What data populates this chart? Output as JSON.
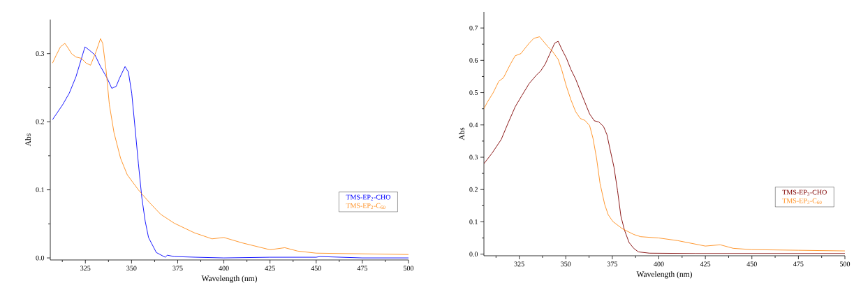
{
  "chart_data": [
    {
      "type": "line",
      "xlabel": "Wavelength (nm)",
      "ylabel": "Abs",
      "xlim": [
        306,
        500
      ],
      "ylim": [
        -0.003,
        0.35
      ],
      "xticks": [
        {
          "value": 312.5,
          "label": null
        },
        325,
        {
          "value": 337.5,
          "label": null
        },
        350,
        {
          "value": 362.5,
          "label": null
        },
        375,
        {
          "value": 387.5,
          "label": null
        },
        400,
        {
          "value": 412.5,
          "label": null
        },
        425,
        {
          "value": 437.5,
          "label": null
        },
        450,
        {
          "value": 462.5,
          "label": null
        },
        475,
        {
          "value": 487.5,
          "label": null
        },
        500
      ],
      "yticks": [
        {
          "value": 0,
          "label": "0.0"
        },
        {
          "value": 0.05,
          "label": null
        },
        0.1,
        {
          "value": 0.15,
          "label": null
        },
        0.2,
        {
          "value": 0.25,
          "label": null
        },
        0.3
      ],
      "legend": "right",
      "grid": false,
      "series": [
        {
          "name": "TMS-EP$_{2}$-CHO",
          "color": "#0000ff",
          "x": [
            307.2,
            309.7,
            312.7,
            316.3,
            319.9,
            322.9,
            324.8,
            327.2,
            330.2,
            333.2,
            336.8,
            339.3,
            341.7,
            343.5,
            346.5,
            348.3,
            350.1,
            351.9,
            353.7,
            355.6,
            357.4,
            359.2,
            363.4,
            368.2,
            369.4,
            373.1,
            385,
            400,
            425,
            450,
            452,
            475,
            500
          ],
          "values": [
            0.203,
            0.213,
            0.225,
            0.242,
            0.266,
            0.293,
            0.31,
            0.305,
            0.298,
            0.281,
            0.264,
            0.249,
            0.252,
            0.264,
            0.281,
            0.273,
            0.242,
            0.191,
            0.139,
            0.088,
            0.054,
            0.03,
            0.008,
            0.001,
            0.004,
            0.002,
            0.001,
            0.0,
            0.001,
            0.001,
            0.002,
            0.0,
            0.0
          ]
        },
        {
          "name": "TMS-EP$_{2}$-C$_{60}$",
          "color": "#ff8c1a",
          "x": [
            307.2,
            309.1,
            311.5,
            313.9,
            315.7,
            317.5,
            319.9,
            322.9,
            325.4,
            327.8,
            330.8,
            333.2,
            334.4,
            336.2,
            338.0,
            340.5,
            344.1,
            347.7,
            353.7,
            359.8,
            365.8,
            373.1,
            383.9,
            393.6,
            400,
            410,
            425,
            433,
            440,
            450,
            475,
            500
          ],
          "values": [
            0.286,
            0.297,
            0.31,
            0.315,
            0.308,
            0.3,
            0.295,
            0.293,
            0.286,
            0.283,
            0.303,
            0.322,
            0.315,
            0.276,
            0.225,
            0.184,
            0.146,
            0.122,
            0.1,
            0.081,
            0.064,
            0.051,
            0.037,
            0.028,
            0.03,
            0.022,
            0.012,
            0.015,
            0.01,
            0.007,
            0.006,
            0.005
          ]
        }
      ]
    },
    {
      "type": "line",
      "xlabel": "Wavelength (nm)",
      "ylabel": "Abs",
      "xlim": [
        306,
        500
      ],
      "ylim": [
        -0.005,
        0.75
      ],
      "xticks": [
        {
          "value": 312.5,
          "label": null
        },
        325,
        {
          "value": 337.5,
          "label": null
        },
        350,
        {
          "value": 362.5,
          "label": null
        },
        375,
        {
          "value": 387.5,
          "label": null
        },
        400,
        {
          "value": 412.5,
          "label": null
        },
        425,
        {
          "value": 437.5,
          "label": null
        },
        450,
        {
          "value": 462.5,
          "label": null
        },
        475,
        {
          "value": 487.5,
          "label": null
        },
        500
      ],
      "yticks": [
        {
          "value": 0,
          "label": "0.0"
        },
        {
          "value": 0.05,
          "label": null
        },
        0.1,
        {
          "value": 0.15,
          "label": null
        },
        0.2,
        {
          "value": 0.25,
          "label": null
        },
        0.3,
        {
          "value": 0.35,
          "label": null
        },
        0.4,
        {
          "value": 0.45,
          "label": null
        },
        0.5,
        {
          "value": 0.55,
          "label": null
        },
        0.6,
        {
          "value": 0.65,
          "label": null
        },
        0.7
      ],
      "legend": "right",
      "grid": false,
      "series": [
        {
          "name": "TMS-EP$_{3}$-CHO",
          "color": "#7f0000",
          "x": [
            306.0,
            310.3,
            315.3,
            319.0,
            322.8,
            326.5,
            330.3,
            334.0,
            336.5,
            339.0,
            341.5,
            344.0,
            345.9,
            347.8,
            350.3,
            352.8,
            355.3,
            359.0,
            362.8,
            365.3,
            367.8,
            370.3,
            372.1,
            374.0,
            375.9,
            377.8,
            379.6,
            381.5,
            384.0,
            386.5,
            389.0,
            395,
            420,
            450,
            475,
            500
          ],
          "values": [
            0.28,
            0.312,
            0.355,
            0.406,
            0.456,
            0.492,
            0.528,
            0.553,
            0.567,
            0.589,
            0.621,
            0.653,
            0.659,
            0.635,
            0.607,
            0.571,
            0.542,
            0.488,
            0.434,
            0.413,
            0.409,
            0.395,
            0.37,
            0.319,
            0.269,
            0.197,
            0.118,
            0.075,
            0.036,
            0.018,
            0.007,
            0.003,
            0.002,
            0.002,
            0.002,
            0.002
          ]
        },
        {
          "name": "TMS-EP$_{3}$-C$_{60}$",
          "color": "#ff8c1a",
          "x": [
            306.0,
            307.8,
            310.9,
            314.0,
            316.5,
            320.3,
            322.8,
            325.9,
            327.8,
            330.3,
            332.8,
            335.9,
            337.8,
            340.3,
            342.8,
            345.9,
            347.8,
            350.3,
            352.8,
            355.3,
            357.8,
            360.3,
            362.8,
            364.6,
            366.5,
            368.4,
            370.9,
            372.8,
            375.3,
            380.3,
            386.5,
            390.3,
            400,
            410,
            425,
            433,
            440,
            450,
            475,
            500
          ],
          "values": [
            0.45,
            0.47,
            0.499,
            0.535,
            0.546,
            0.589,
            0.614,
            0.621,
            0.635,
            0.653,
            0.668,
            0.673,
            0.66,
            0.643,
            0.628,
            0.603,
            0.571,
            0.52,
            0.477,
            0.441,
            0.42,
            0.414,
            0.398,
            0.359,
            0.298,
            0.219,
            0.154,
            0.122,
            0.101,
            0.079,
            0.061,
            0.054,
            0.05,
            0.042,
            0.025,
            0.029,
            0.018,
            0.014,
            0.012,
            0.01
          ]
        }
      ]
    }
  ]
}
